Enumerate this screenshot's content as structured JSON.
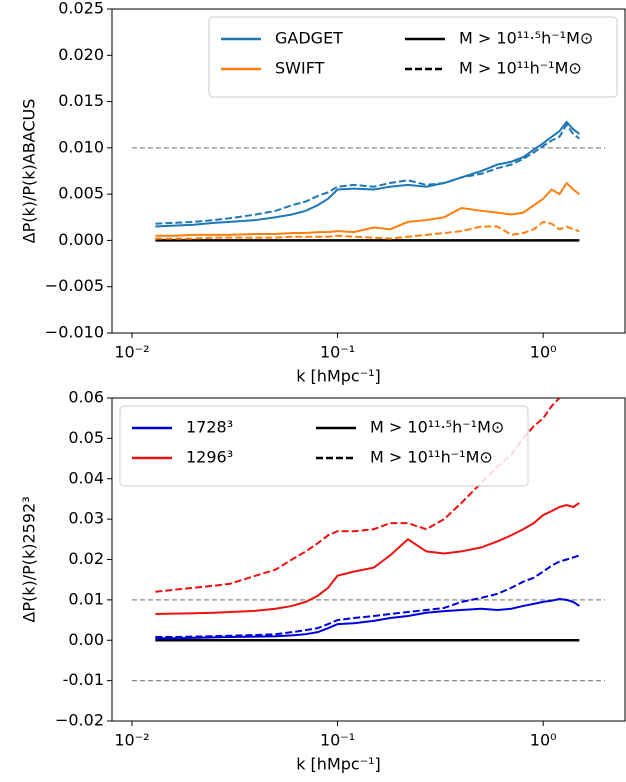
{
  "chart_data": [
    {
      "type": "line",
      "ylabel": "ΔP(k)/P(k)ABACUS",
      "xlabel": "k [hMpc⁻¹]",
      "xscale": "log",
      "legend_loc": "upper right",
      "xlim": [
        0.008,
        2.5
      ],
      "xticks": [
        {
          "value": 0.01,
          "label": "10⁻²"
        },
        {
          "value": 0.1,
          "label": "10⁻¹"
        },
        {
          "value": 1,
          "label": "10⁰"
        }
      ],
      "ylim": [
        -0.01,
        0.025
      ],
      "yticks": [
        {
          "value": -0.01,
          "label": "−0.010"
        },
        {
          "value": -0.005,
          "label": "−0.005"
        },
        {
          "value": 0,
          "label": "0.000"
        },
        0.005,
        {
          "value": 0.01,
          "label": "0.010"
        },
        0.015,
        {
          "value": 0.02,
          "label": "0.020"
        },
        0.025
      ],
      "x": [
        0.013,
        0.016,
        0.02,
        0.025,
        0.03,
        0.04,
        0.05,
        0.06,
        0.07,
        0.08,
        0.09,
        0.1,
        0.12,
        0.15,
        0.18,
        0.22,
        0.27,
        0.33,
        0.4,
        0.5,
        0.6,
        0.7,
        0.8,
        0.9,
        1.0,
        1.1,
        1.2,
        1.3,
        1.4,
        1.5
      ],
      "series": [
        {
          "name": "GADGET",
          "color": "#1f77b4",
          "dash": false,
          "values": [
            0.0015,
            0.0016,
            0.0017,
            0.0019,
            0.002,
            0.0022,
            0.0025,
            0.0028,
            0.0032,
            0.0038,
            0.0045,
            0.0055,
            0.0056,
            0.0055,
            0.0058,
            0.006,
            0.0058,
            0.0062,
            0.0068,
            0.0075,
            0.0082,
            0.0085,
            0.009,
            0.0098,
            0.0105,
            0.0112,
            0.0118,
            0.0128,
            0.012,
            0.0115
          ]
        },
        {
          "color": "#1f77b4",
          "dash": true,
          "values": [
            0.0018,
            0.0019,
            0.002,
            0.0022,
            0.0024,
            0.0028,
            0.0032,
            0.0038,
            0.0042,
            0.0048,
            0.0052,
            0.0058,
            0.006,
            0.0058,
            0.0062,
            0.0065,
            0.006,
            0.0062,
            0.0068,
            0.0072,
            0.0078,
            0.0082,
            0.0088,
            0.0095,
            0.0102,
            0.0108,
            0.0112,
            0.0125,
            0.0115,
            0.011
          ]
        },
        {
          "name": "SWIFT",
          "color": "#ff7f0e",
          "dash": false,
          "values": [
            0.0005,
            0.0005,
            0.0006,
            0.0006,
            0.0006,
            0.0007,
            0.0007,
            0.0008,
            0.0008,
            0.0009,
            0.0009,
            0.001,
            0.0009,
            0.0014,
            0.0012,
            0.002,
            0.0022,
            0.0025,
            0.0035,
            0.0032,
            0.003,
            0.0028,
            0.003,
            0.0038,
            0.0045,
            0.0055,
            0.005,
            0.0062,
            0.0055,
            0.005
          ]
        },
        {
          "color": "#ff7f0e",
          "dash": true,
          "values": [
            0.0002,
            0.0002,
            0.0002,
            0.0003,
            0.0003,
            0.0003,
            0.0003,
            0.0004,
            0.0004,
            0.0004,
            0.0004,
            0.0005,
            0.0004,
            0.0003,
            0.0002,
            0.0004,
            0.0006,
            0.0008,
            0.001,
            0.0015,
            0.0015,
            0.0006,
            0.0008,
            0.0012,
            0.002,
            0.0018,
            0.0012,
            0.0015,
            0.0012,
            0.001
          ]
        }
      ],
      "style_legend": [
        {
          "label": "M > 10¹¹·⁵h⁻¹M⊙",
          "dash": false
        },
        {
          "label": "M > 10¹¹h⁻¹M⊙",
          "dash": true
        }
      ],
      "hlines": [
        {
          "y": 0,
          "color": "#000000",
          "dash": false,
          "x": [
            0.013,
            1.5
          ]
        },
        {
          "y": 0.01,
          "color": "#888888",
          "dash": true,
          "x": [
            0.01,
            2
          ]
        }
      ]
    },
    {
      "type": "line",
      "ylabel": "ΔP(k)/P(k)2592³",
      "xlabel": "k [hMpc⁻¹]",
      "xscale": "log",
      "legend_loc": "upper left",
      "xlim": [
        0.008,
        2.5
      ],
      "xticks": [
        {
          "value": 0.01,
          "label": "10⁻²"
        },
        {
          "value": 0.1,
          "label": "10⁻¹"
        },
        {
          "value": 1,
          "label": "10⁰"
        }
      ],
      "ylim": [
        -0.02,
        0.06
      ],
      "yticks": [
        {
          "value": -0.02,
          "label": "−0.02"
        },
        {
          "value": -0.01,
          "label": "-0.01"
        },
        {
          "value": 0,
          "label": "0.00"
        },
        0.01,
        0.02,
        0.03,
        0.04,
        0.05,
        0.06
      ],
      "x": [
        0.013,
        0.016,
        0.02,
        0.025,
        0.03,
        0.04,
        0.05,
        0.06,
        0.07,
        0.08,
        0.09,
        0.1,
        0.12,
        0.15,
        0.18,
        0.22,
        0.27,
        0.33,
        0.4,
        0.5,
        0.6,
        0.7,
        0.8,
        0.9,
        1.0,
        1.1,
        1.2,
        1.3,
        1.4,
        1.5
      ],
      "series": [
        {
          "name": "1728³",
          "color": "#0000dd",
          "dash": false,
          "values": [
            0.0005,
            0.0005,
            0.0006,
            0.0007,
            0.0008,
            0.0009,
            0.001,
            0.0012,
            0.0015,
            0.002,
            0.003,
            0.004,
            0.0042,
            0.0048,
            0.0055,
            0.006,
            0.0068,
            0.0072,
            0.0075,
            0.0078,
            0.0075,
            0.0078,
            0.0085,
            0.009,
            0.0095,
            0.0098,
            0.0102,
            0.01,
            0.0095,
            0.0085
          ]
        },
        {
          "color": "#0000dd",
          "dash": true,
          "values": [
            0.0008,
            0.0008,
            0.0009,
            0.001,
            0.0011,
            0.0013,
            0.0015,
            0.002,
            0.0025,
            0.003,
            0.004,
            0.005,
            0.0055,
            0.006,
            0.0065,
            0.007,
            0.0075,
            0.008,
            0.0095,
            0.0105,
            0.0115,
            0.013,
            0.0145,
            0.0155,
            0.017,
            0.0185,
            0.0195,
            0.02,
            0.0205,
            0.021
          ]
        },
        {
          "name": "1296³",
          "color": "#ee1111",
          "dash": false,
          "values": [
            0.0065,
            0.0066,
            0.0067,
            0.0068,
            0.007,
            0.0073,
            0.0078,
            0.0085,
            0.0095,
            0.011,
            0.013,
            0.016,
            0.017,
            0.018,
            0.021,
            0.025,
            0.022,
            0.0215,
            0.022,
            0.023,
            0.0245,
            0.026,
            0.0275,
            0.029,
            0.031,
            0.032,
            0.033,
            0.0335,
            0.033,
            0.034
          ]
        },
        {
          "color": "#ee1111",
          "dash": true,
          "values": [
            0.012,
            0.0125,
            0.013,
            0.0135,
            0.014,
            0.016,
            0.0175,
            0.02,
            0.022,
            0.024,
            0.026,
            0.027,
            0.027,
            0.0275,
            0.029,
            0.029,
            0.0275,
            0.03,
            0.034,
            0.039,
            0.043,
            0.046,
            0.05,
            0.053,
            0.055,
            0.058,
            0.06,
            0.061,
            0.062,
            0.063
          ]
        }
      ],
      "style_legend": [
        {
          "label": "M > 10¹¹·⁵h⁻¹M⊙",
          "dash": false
        },
        {
          "label": "M > 10¹¹h⁻¹M⊙",
          "dash": true
        }
      ],
      "hlines": [
        {
          "y": 0,
          "color": "#000000",
          "dash": false,
          "x": [
            0.013,
            1.5
          ]
        },
        {
          "y": 0.01,
          "color": "#888888",
          "dash": true,
          "x": [
            0.01,
            2
          ]
        },
        {
          "y": -0.01,
          "color": "#888888",
          "dash": true,
          "x": [
            0.01,
            2
          ]
        }
      ]
    }
  ]
}
